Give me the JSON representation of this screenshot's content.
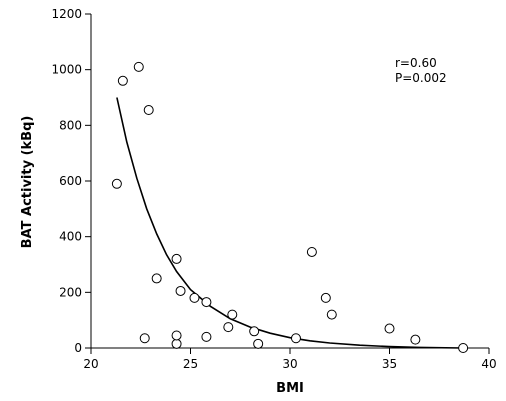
{
  "chart_data": {
    "type": "scatter",
    "xlabel": "BMI",
    "ylabel": "BAT Activity (kBq)",
    "xlim": [
      20,
      40
    ],
    "ylim": [
      0,
      1200
    ],
    "xticks": [
      20,
      25,
      30,
      35,
      40
    ],
    "yticks": [
      0,
      200,
      400,
      600,
      800,
      1000,
      1200
    ],
    "grid": false,
    "annotations": [
      "r=0.60",
      "P=0.002"
    ],
    "series": [
      {
        "points": [
          [
            21.3,
            590
          ],
          [
            21.6,
            960
          ],
          [
            22.4,
            1010
          ],
          [
            22.7,
            35
          ],
          [
            22.9,
            855
          ],
          [
            23.3,
            250
          ],
          [
            24.3,
            320
          ],
          [
            24.3,
            15
          ],
          [
            24.3,
            45
          ],
          [
            24.5,
            205
          ],
          [
            25.2,
            180
          ],
          [
            25.8,
            165
          ],
          [
            25.8,
            40
          ],
          [
            26.9,
            75
          ],
          [
            27.1,
            120
          ],
          [
            28.2,
            60
          ],
          [
            28.4,
            15
          ],
          [
            30.3,
            35
          ],
          [
            31.1,
            345
          ],
          [
            31.8,
            180
          ],
          [
            32.1,
            120
          ],
          [
            35.0,
            70
          ],
          [
            36.3,
            30
          ],
          [
            38.7,
            0
          ]
        ]
      }
    ],
    "fit_curve": {
      "type": "exponential-decay",
      "points": [
        [
          21.3,
          900
        ],
        [
          21.8,
          740
        ],
        [
          22.3,
          610
        ],
        [
          22.8,
          500
        ],
        [
          23.3,
          410
        ],
        [
          23.8,
          335
        ],
        [
          24.3,
          275
        ],
        [
          25.0,
          210
        ],
        [
          26.0,
          150
        ],
        [
          27.0,
          105
        ],
        [
          28.0,
          75
        ],
        [
          29.0,
          53
        ],
        [
          30.0,
          37
        ],
        [
          31.0,
          26
        ],
        [
          32.0,
          18
        ],
        [
          33.5,
          10
        ],
        [
          35.0,
          5
        ],
        [
          36.5,
          2
        ],
        [
          38.7,
          0
        ]
      ]
    }
  }
}
